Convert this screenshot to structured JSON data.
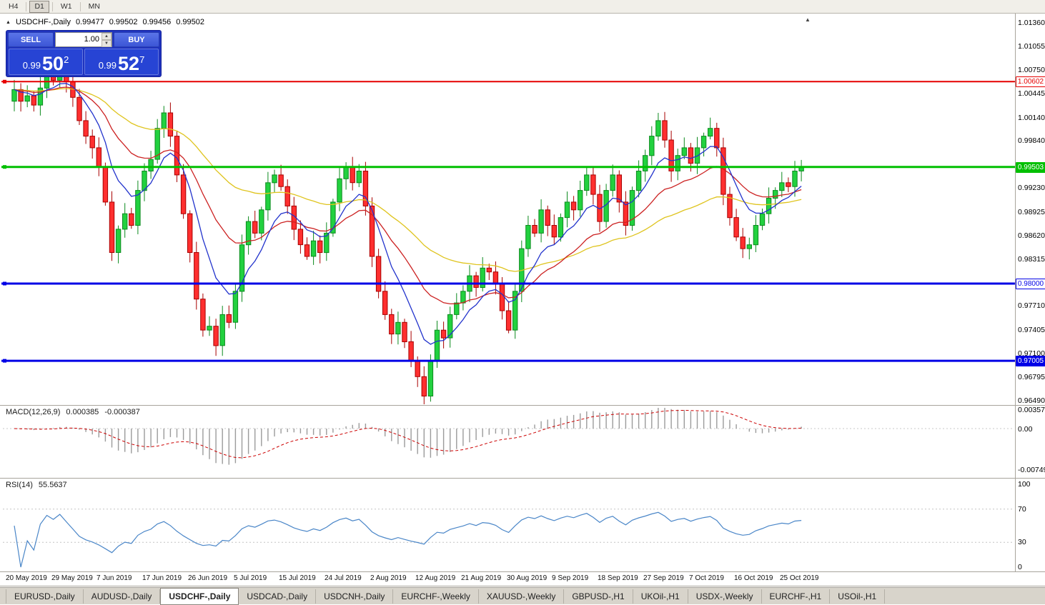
{
  "toolbar": {
    "timeframes": [
      {
        "label": "H4",
        "active": false
      },
      {
        "label": "D1",
        "active": true
      },
      {
        "label": "W1",
        "active": false
      },
      {
        "label": "MN",
        "active": false
      }
    ]
  },
  "chart": {
    "type": "candlestick",
    "header": {
      "symbol": "USDCHF-,Daily",
      "open": "0.99477",
      "high": "0.99502",
      "low": "0.99456",
      "close": "0.99502"
    },
    "trade": {
      "sell_label": "SELL",
      "buy_label": "BUY",
      "volume": "1.00",
      "sell_base": "0.99",
      "sell_big": "50",
      "sell_pip": "2",
      "buy_base": "0.99",
      "buy_big": "52",
      "buy_pip": "7"
    },
    "price_axis": [
      "1.01360",
      "1.01055",
      "1.00750",
      "1.00445",
      "1.00140",
      "0.99840",
      "0.99230",
      "0.98925",
      "0.98620",
      "0.98315",
      "0.97710",
      "0.97405",
      "0.97100",
      "0.96795",
      "0.96490"
    ],
    "hlines": [
      {
        "price": 1.00602,
        "label": "1.00602",
        "color": "#e60000",
        "width": 2,
        "badge": "outline"
      },
      {
        "price": 0.99503,
        "label": "0.99503",
        "color": "#00bf00",
        "width": 3,
        "badge": "fill"
      },
      {
        "price": 0.98,
        "label": "0.98000",
        "color": "#0000e6",
        "width": 3,
        "badge": "outline"
      },
      {
        "price": 0.97005,
        "label": "0.97005",
        "color": "#0000e6",
        "width": 3,
        "badge": "fill"
      }
    ],
    "dates": [
      "20 May 2019",
      "29 May 2019",
      "7 Jun 2019",
      "17 Jun 2019",
      "26 Jun 2019",
      "5 Jul 2019",
      "15 Jul 2019",
      "24 Jul 2019",
      "2 Aug 2019",
      "12 Aug 2019",
      "21 Aug 2019",
      "30 Aug 2019",
      "9 Sep 2019",
      "18 Sep 2019",
      "27 Sep 2019",
      "7 Oct 2019",
      "16 Oct 2019",
      "25 Oct 2019"
    ],
    "closes": [
      1.005,
      1.0035,
      1.0042,
      1.003,
      1.0052,
      1.0068,
      1.0062,
      1.0075,
      1.006,
      1.004,
      1.001,
      0.999,
      0.9975,
      0.995,
      0.9905,
      0.984,
      0.987,
      0.989,
      0.9875,
      0.992,
      0.9945,
      0.996,
      1.0,
      1.002,
      0.999,
      0.994,
      0.989,
      0.984,
      0.978,
      0.974,
      0.9745,
      0.972,
      0.976,
      0.975,
      0.979,
      0.985,
      0.988,
      0.9865,
      0.9895,
      0.993,
      0.994,
      0.9925,
      0.99,
      0.987,
      0.985,
      0.9835,
      0.9855,
      0.984,
      0.9865,
      0.9905,
      0.9935,
      0.995,
      0.993,
      0.9945,
      0.99,
      0.9835,
      0.979,
      0.976,
      0.9735,
      0.975,
      0.9725,
      0.97,
      0.968,
      0.9655,
      0.97,
      0.974,
      0.973,
      0.976,
      0.9775,
      0.979,
      0.981,
      0.9795,
      0.982,
      0.9815,
      0.98,
      0.9765,
      0.974,
      0.979,
      0.9845,
      0.9875,
      0.9865,
      0.9895,
      0.9875,
      0.986,
      0.9885,
      0.9905,
      0.9895,
      0.992,
      0.994,
      0.9915,
      0.988,
      0.992,
      0.994,
      0.9905,
      0.9875,
      0.992,
      0.9945,
      0.9965,
      0.999,
      1.001,
      0.9985,
      0.9945,
      0.9965,
      0.9975,
      0.9955,
      0.9975,
      0.999,
      1.0,
      0.9975,
      0.9915,
      0.9885,
      0.986,
      0.9845,
      0.985,
      0.9875,
      0.989,
      0.991,
      0.992,
      0.993,
      0.9925,
      0.9945,
      0.995
    ],
    "colors": {
      "bull": "#22d13f",
      "bull_edge": "#0c8a1e",
      "bear": "#ff2f2f",
      "bear_edge": "#a80000",
      "ma_fast": "#2233cc",
      "ma_mid": "#cc2222",
      "ma_slow": "#dfc41e",
      "rsi": "#4a86c8",
      "macd_hist": "#9b9b9b",
      "macd_signal": "#cc0000"
    }
  },
  "macd": {
    "name": "MACD(12,26,9)",
    "value_main": "0.000385",
    "value_signal": "-0.000387",
    "axis": [
      "0.003574",
      "0.00",
      "-0.00749"
    ]
  },
  "rsi": {
    "name": "RSI(14)",
    "value": "55.5637",
    "axis": [
      "100",
      "70",
      "30",
      "0"
    ]
  },
  "tabs": [
    {
      "label": "EURUSD-,Daily",
      "active": false
    },
    {
      "label": "AUDUSD-,Daily",
      "active": false
    },
    {
      "label": "USDCHF-,Daily",
      "active": true
    },
    {
      "label": "USDCAD-,Daily",
      "active": false
    },
    {
      "label": "USDCNH-,Daily",
      "active": false
    },
    {
      "label": "EURCHF-,Weekly",
      "active": false
    },
    {
      "label": "XAUUSD-,Weekly",
      "active": false
    },
    {
      "label": "GBPUSD-,H1",
      "active": false
    },
    {
      "label": "UKOil-,H1",
      "active": false
    },
    {
      "label": "USDX-,Weekly",
      "active": false
    },
    {
      "label": "EURCHF-,H1",
      "active": false
    },
    {
      "label": "USOil-,H1",
      "active": false
    }
  ]
}
